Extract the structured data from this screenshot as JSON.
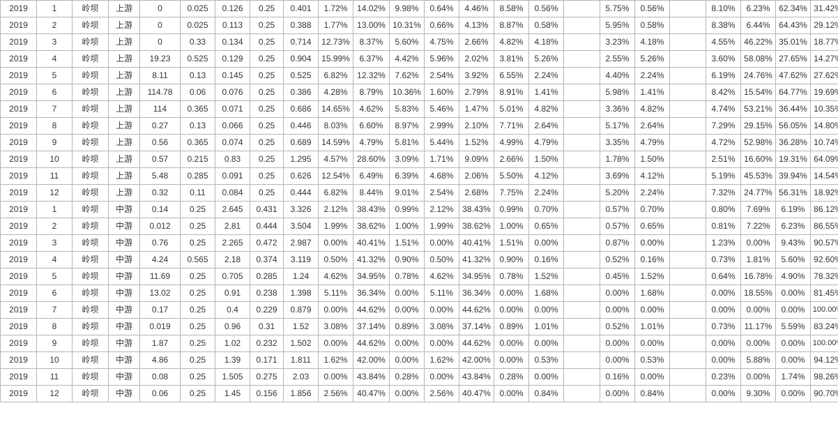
{
  "table": {
    "rows": [
      [
        "2019",
        "1",
        "岭坝",
        "上游",
        "0",
        "0.025",
        "0.126",
        "0.25",
        "0.401",
        "1.72%",
        "14.02%",
        "9.98%",
        "0.64%",
        "4.46%",
        "8.58%",
        "0.56%",
        "",
        "5.75%",
        "0.56%",
        "",
        "8.10%",
        "6.23%",
        "62.34%",
        "31.42%"
      ],
      [
        "2019",
        "2",
        "岭坝",
        "上游",
        "0",
        "0.025",
        "0.113",
        "0.25",
        "0.388",
        "1.77%",
        "13.00%",
        "10.31%",
        "0.66%",
        "4.13%",
        "8.87%",
        "0.58%",
        "",
        "5.95%",
        "0.58%",
        "",
        "8.38%",
        "6.44%",
        "64.43%",
        "29.12%"
      ],
      [
        "2019",
        "3",
        "岭坝",
        "上游",
        "0",
        "0.33",
        "0.134",
        "0.25",
        "0.714",
        "12.73%",
        "8.37%",
        "5.60%",
        "4.75%",
        "2.66%",
        "4.82%",
        "4.18%",
        "",
        "3.23%",
        "4.18%",
        "",
        "4.55%",
        "46.22%",
        "35.01%",
        "18.77%"
      ],
      [
        "2019",
        "4",
        "岭坝",
        "上游",
        "19.23",
        "0.525",
        "0.129",
        "0.25",
        "0.904",
        "15.99%",
        "6.37%",
        "4.42%",
        "5.96%",
        "2.02%",
        "3.81%",
        "5.26%",
        "",
        "2.55%",
        "5.26%",
        "",
        "3.60%",
        "58.08%",
        "27.65%",
        "14.27%"
      ],
      [
        "2019",
        "5",
        "岭坝",
        "上游",
        "8.11",
        "0.13",
        "0.145",
        "0.25",
        "0.525",
        "6.82%",
        "12.32%",
        "7.62%",
        "2.54%",
        "3.92%",
        "6.55%",
        "2.24%",
        "",
        "4.40%",
        "2.24%",
        "",
        "6.19%",
        "24.76%",
        "47.62%",
        "27.62%"
      ],
      [
        "2019",
        "6",
        "岭坝",
        "上游",
        "114.78",
        "0.06",
        "0.076",
        "0.25",
        "0.386",
        "4.28%",
        "8.79%",
        "10.36%",
        "1.60%",
        "2.79%",
        "8.91%",
        "1.41%",
        "",
        "5.98%",
        "1.41%",
        "",
        "8.42%",
        "15.54%",
        "64.77%",
        "19.69%"
      ],
      [
        "2019",
        "7",
        "岭坝",
        "上游",
        "114",
        "0.365",
        "0.071",
        "0.25",
        "0.686",
        "14.65%",
        "4.62%",
        "5.83%",
        "5.46%",
        "1.47%",
        "5.01%",
        "4.82%",
        "",
        "3.36%",
        "4.82%",
        "",
        "4.74%",
        "53.21%",
        "36.44%",
        "10.35%"
      ],
      [
        "2019",
        "8",
        "岭坝",
        "上游",
        "0.27",
        "0.13",
        "0.066",
        "0.25",
        "0.446",
        "8.03%",
        "6.60%",
        "8.97%",
        "2.99%",
        "2.10%",
        "7.71%",
        "2.64%",
        "",
        "5.17%",
        "2.64%",
        "",
        "7.29%",
        "29.15%",
        "56.05%",
        "14.80%"
      ],
      [
        "2019",
        "9",
        "岭坝",
        "上游",
        "0.56",
        "0.365",
        "0.074",
        "0.25",
        "0.689",
        "14.59%",
        "4.79%",
        "5.81%",
        "5.44%",
        "1.52%",
        "4.99%",
        "4.79%",
        "",
        "3.35%",
        "4.79%",
        "",
        "4.72%",
        "52.98%",
        "36.28%",
        "10.74%"
      ],
      [
        "2019",
        "10",
        "岭坝",
        "上游",
        "0.57",
        "0.215",
        "0.83",
        "0.25",
        "1.295",
        "4.57%",
        "28.60%",
        "3.09%",
        "1.71%",
        "9.09%",
        "2.66%",
        "1.50%",
        "",
        "1.78%",
        "1.50%",
        "",
        "2.51%",
        "16.60%",
        "19.31%",
        "64.09%"
      ],
      [
        "2019",
        "11",
        "岭坝",
        "上游",
        "5.48",
        "0.285",
        "0.091",
        "0.25",
        "0.626",
        "12.54%",
        "6.49%",
        "6.39%",
        "4.68%",
        "2.06%",
        "5.50%",
        "4.12%",
        "",
        "3.69%",
        "4.12%",
        "",
        "5.19%",
        "45.53%",
        "39.94%",
        "14.54%"
      ],
      [
        "2019",
        "12",
        "岭坝",
        "上游",
        "0.32",
        "0.11",
        "0.084",
        "0.25",
        "0.444",
        "6.82%",
        "8.44%",
        "9.01%",
        "2.54%",
        "2.68%",
        "7.75%",
        "2.24%",
        "",
        "5.20%",
        "2.24%",
        "",
        "7.32%",
        "24.77%",
        "56.31%",
        "18.92%"
      ],
      [
        "2019",
        "1",
        "岭坝",
        "中游",
        "0.14",
        "0.25",
        "2.645",
        "0.431",
        "3.326",
        "2.12%",
        "38.43%",
        "0.99%",
        "2.12%",
        "38.43%",
        "0.99%",
        "0.70%",
        "",
        "0.57%",
        "0.70%",
        "",
        "0.80%",
        "7.69%",
        "6.19%",
        "86.12%"
      ],
      [
        "2019",
        "2",
        "岭坝",
        "中游",
        "0.012",
        "0.25",
        "2.81",
        "0.444",
        "3.504",
        "1.99%",
        "38.62%",
        "1.00%",
        "1.99%",
        "38.62%",
        "1.00%",
        "0.65%",
        "",
        "0.57%",
        "0.65%",
        "",
        "0.81%",
        "7.22%",
        "6.23%",
        "86.55%"
      ],
      [
        "2019",
        "3",
        "岭坝",
        "中游",
        "0.76",
        "0.25",
        "2.265",
        "0.472",
        "2.987",
        "0.00%",
        "40.41%",
        "1.51%",
        "0.00%",
        "40.41%",
        "1.51%",
        "0.00%",
        "",
        "0.87%",
        "0.00%",
        "",
        "1.23%",
        "0.00%",
        "9.43%",
        "90.57%"
      ],
      [
        "2019",
        "4",
        "岭坝",
        "中游",
        "4.24",
        "0.565",
        "2.18",
        "0.374",
        "3.119",
        "0.50%",
        "41.32%",
        "0.90%",
        "0.50%",
        "41.32%",
        "0.90%",
        "0.16%",
        "",
        "0.52%",
        "0.16%",
        "",
        "0.73%",
        "1.81%",
        "5.60%",
        "92.60%"
      ],
      [
        "2019",
        "5",
        "岭坝",
        "中游",
        "11.69",
        "0.25",
        "0.705",
        "0.285",
        "1.24",
        "4.62%",
        "34.95%",
        "0.78%",
        "4.62%",
        "34.95%",
        "0.78%",
        "1.52%",
        "",
        "0.45%",
        "1.52%",
        "",
        "0.64%",
        "16.78%",
        "4.90%",
        "78.32%"
      ],
      [
        "2019",
        "6",
        "岭坝",
        "中游",
        "13.02",
        "0.25",
        "0.91",
        "0.238",
        "1.398",
        "5.11%",
        "36.34%",
        "0.00%",
        "5.11%",
        "36.34%",
        "0.00%",
        "1.68%",
        "",
        "0.00%",
        "1.68%",
        "",
        "0.00%",
        "18.55%",
        "0.00%",
        "81.45%"
      ],
      [
        "2019",
        "7",
        "岭坝",
        "中游",
        "0.17",
        "0.25",
        "0.4",
        "0.229",
        "0.879",
        "0.00%",
        "44.62%",
        "0.00%",
        "0.00%",
        "44.62%",
        "0.00%",
        "0.00%",
        "",
        "0.00%",
        "0.00%",
        "",
        "0.00%",
        "0.00%",
        "0.00%",
        "100.00%"
      ],
      [
        "2019",
        "8",
        "岭坝",
        "中游",
        "0.019",
        "0.25",
        "0.96",
        "0.31",
        "1.52",
        "3.08%",
        "37.14%",
        "0.89%",
        "3.08%",
        "37.14%",
        "0.89%",
        "1.01%",
        "",
        "0.52%",
        "1.01%",
        "",
        "0.73%",
        "11.17%",
        "5.59%",
        "83.24%"
      ],
      [
        "2019",
        "9",
        "岭坝",
        "中游",
        "1.87",
        "0.25",
        "1.02",
        "0.232",
        "1.502",
        "0.00%",
        "44.62%",
        "0.00%",
        "0.00%",
        "44.62%",
        "0.00%",
        "0.00%",
        "",
        "0.00%",
        "0.00%",
        "",
        "0.00%",
        "0.00%",
        "0.00%",
        "100.00%"
      ],
      [
        "2019",
        "10",
        "岭坝",
        "中游",
        "4.86",
        "0.25",
        "1.39",
        "0.171",
        "1.811",
        "1.62%",
        "42.00%",
        "0.00%",
        "1.62%",
        "42.00%",
        "0.00%",
        "0.53%",
        "",
        "0.00%",
        "0.53%",
        "",
        "0.00%",
        "5.88%",
        "0.00%",
        "94.12%"
      ],
      [
        "2019",
        "11",
        "岭坝",
        "中游",
        "0.08",
        "0.25",
        "1.505",
        "0.275",
        "2.03",
        "0.00%",
        "43.84%",
        "0.28%",
        "0.00%",
        "43.84%",
        "0.28%",
        "0.00%",
        "",
        "0.16%",
        "0.00%",
        "",
        "0.23%",
        "0.00%",
        "1.74%",
        "98.26%"
      ],
      [
        "2019",
        "12",
        "岭坝",
        "中游",
        "0.06",
        "0.25",
        "1.45",
        "0.156",
        "1.856",
        "2.56%",
        "40.47%",
        "0.00%",
        "2.56%",
        "40.47%",
        "0.00%",
        "0.84%",
        "",
        "0.00%",
        "0.84%",
        "",
        "0.00%",
        "9.30%",
        "0.00%",
        "90.70%"
      ]
    ]
  }
}
